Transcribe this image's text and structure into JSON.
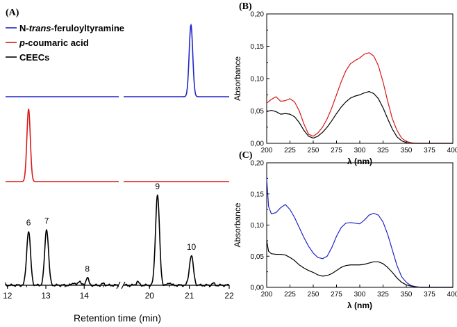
{
  "chart_data": [
    {
      "panel_label": "(A)",
      "type": "line",
      "xlabel": "Retention time (min)",
      "ylabel": "",
      "x_ticks": [
        "12",
        "13",
        "14",
        "20",
        "21",
        "22"
      ],
      "axis_break": "after 14.9 min, resumes at 19.4 min",
      "legend_position": "top-left",
      "series": [
        {
          "name": "N-trans-feruloyltyramine",
          "name_parts": {
            "prefix": "N-",
            "italic": "trans",
            "suffix": "-feruloyltyramine"
          },
          "color": "#1f24c8",
          "peaks": [
            {
              "x": 21.04,
              "height": 1.0,
              "width": 0.045
            }
          ]
        },
        {
          "name": "p-coumaric acid",
          "name_parts": {
            "italic": "p",
            "suffix": "-coumaric acid"
          },
          "color": "#d91818",
          "peaks": [
            {
              "x": 12.55,
              "height": 1.0,
              "width": 0.045
            }
          ]
        },
        {
          "name": "CEECs",
          "color": "#000000",
          "peaks": [
            {
              "x": 12.55,
              "height": 0.6,
              "label": "6"
            },
            {
              "x": 13.02,
              "height": 0.62,
              "label": "7"
            },
            {
              "x": 13.72,
              "height": 0.03
            },
            {
              "x": 13.88,
              "height": 0.05
            },
            {
              "x": 14.08,
              "height": 0.09,
              "label": "8"
            },
            {
              "x": 14.5,
              "height": 0.02
            },
            {
              "x": 19.7,
              "height": 0.04
            },
            {
              "x": 20.2,
              "height": 1.0,
              "label": "9"
            },
            {
              "x": 20.5,
              "height": 0.03
            },
            {
              "x": 21.05,
              "height": 0.33,
              "label": "10"
            },
            {
              "x": 21.6,
              "height": 0.02
            }
          ]
        }
      ],
      "peak_labels": [
        "6",
        "7",
        "8",
        "9",
        "10"
      ]
    },
    {
      "panel_label": "(B)",
      "type": "line",
      "xlabel": "λ (nm)",
      "ylabel": "Absorbance",
      "xlim": [
        200,
        400
      ],
      "ylim": [
        0,
        0.2
      ],
      "x_ticks": [
        "200",
        "225",
        "250",
        "275",
        "300",
        "325",
        "350",
        "375",
        "400"
      ],
      "y_ticks": [
        "0,00",
        "0,05",
        "0,10",
        "0,15",
        "0,20"
      ],
      "series": [
        {
          "name": "p-coumaric acid",
          "color": "#d91818",
          "x": [
            200,
            205,
            210,
            215,
            220,
            225,
            230,
            235,
            240,
            245,
            250,
            255,
            260,
            265,
            270,
            275,
            280,
            285,
            290,
            295,
            300,
            305,
            310,
            315,
            320,
            325,
            330,
            335,
            340,
            345,
            350,
            355,
            360,
            365,
            370
          ],
          "y": [
            0.062,
            0.068,
            0.072,
            0.065,
            0.066,
            0.069,
            0.064,
            0.05,
            0.03,
            0.014,
            0.011,
            0.016,
            0.025,
            0.038,
            0.055,
            0.075,
            0.095,
            0.112,
            0.123,
            0.128,
            0.132,
            0.138,
            0.14,
            0.135,
            0.12,
            0.095,
            0.065,
            0.038,
            0.02,
            0.008,
            0.003,
            0.001,
            0.0,
            0.0,
            0.0
          ]
        },
        {
          "name": "CEECs",
          "color": "#000000",
          "x": [
            200,
            205,
            210,
            215,
            220,
            225,
            230,
            235,
            240,
            245,
            250,
            255,
            260,
            265,
            270,
            275,
            280,
            285,
            290,
            295,
            300,
            305,
            310,
            315,
            320,
            325,
            330,
            335,
            340,
            345,
            350,
            355,
            360,
            365,
            370
          ],
          "y": [
            0.049,
            0.051,
            0.049,
            0.045,
            0.046,
            0.045,
            0.041,
            0.032,
            0.02,
            0.011,
            0.008,
            0.011,
            0.017,
            0.025,
            0.035,
            0.046,
            0.056,
            0.064,
            0.07,
            0.073,
            0.075,
            0.078,
            0.08,
            0.077,
            0.069,
            0.055,
            0.038,
            0.022,
            0.01,
            0.004,
            0.001,
            0.0,
            0.0,
            0.0,
            0.0
          ]
        }
      ]
    },
    {
      "panel_label": "(C)",
      "type": "line",
      "xlabel": "λ (nm)",
      "ylabel": "Absorbance",
      "xlim": [
        200,
        400
      ],
      "ylim": [
        0,
        0.2
      ],
      "x_ticks": [
        "200",
        "225",
        "250",
        "275",
        "300",
        "325",
        "350",
        "375",
        "400"
      ],
      "y_ticks": [
        "0,00",
        "0,05",
        "0,10",
        "0,15",
        "0,20"
      ],
      "series": [
        {
          "name": "N-trans-feruloyltyramine",
          "color": "#1f24c8",
          "x": [
            200,
            202,
            205,
            210,
            215,
            220,
            225,
            230,
            235,
            240,
            245,
            250,
            255,
            260,
            265,
            270,
            275,
            280,
            285,
            290,
            295,
            300,
            305,
            310,
            315,
            320,
            325,
            330,
            335,
            340,
            345,
            350,
            355,
            360,
            365,
            370,
            375,
            380
          ],
          "y": [
            0.175,
            0.13,
            0.118,
            0.12,
            0.128,
            0.133,
            0.125,
            0.112,
            0.096,
            0.08,
            0.066,
            0.055,
            0.048,
            0.046,
            0.05,
            0.064,
            0.082,
            0.096,
            0.103,
            0.104,
            0.103,
            0.102,
            0.108,
            0.116,
            0.119,
            0.116,
            0.105,
            0.085,
            0.06,
            0.035,
            0.017,
            0.008,
            0.003,
            0.001,
            0.0,
            0.0,
            0.0,
            0.0
          ]
        },
        {
          "name": "CEECs",
          "color": "#000000",
          "x": [
            200,
            202,
            205,
            210,
            215,
            220,
            225,
            230,
            235,
            240,
            245,
            250,
            255,
            260,
            265,
            270,
            275,
            280,
            285,
            290,
            295,
            300,
            305,
            310,
            315,
            320,
            325,
            330,
            335,
            340,
            345,
            350,
            355,
            360,
            365,
            370,
            375,
            380
          ],
          "y": [
            0.075,
            0.058,
            0.054,
            0.053,
            0.053,
            0.052,
            0.048,
            0.043,
            0.036,
            0.031,
            0.027,
            0.024,
            0.02,
            0.018,
            0.019,
            0.022,
            0.027,
            0.032,
            0.035,
            0.036,
            0.036,
            0.036,
            0.037,
            0.039,
            0.041,
            0.041,
            0.038,
            0.032,
            0.024,
            0.015,
            0.008,
            0.004,
            0.002,
            0.001,
            0.0,
            0.0,
            0.0,
            0.0
          ]
        }
      ]
    }
  ]
}
